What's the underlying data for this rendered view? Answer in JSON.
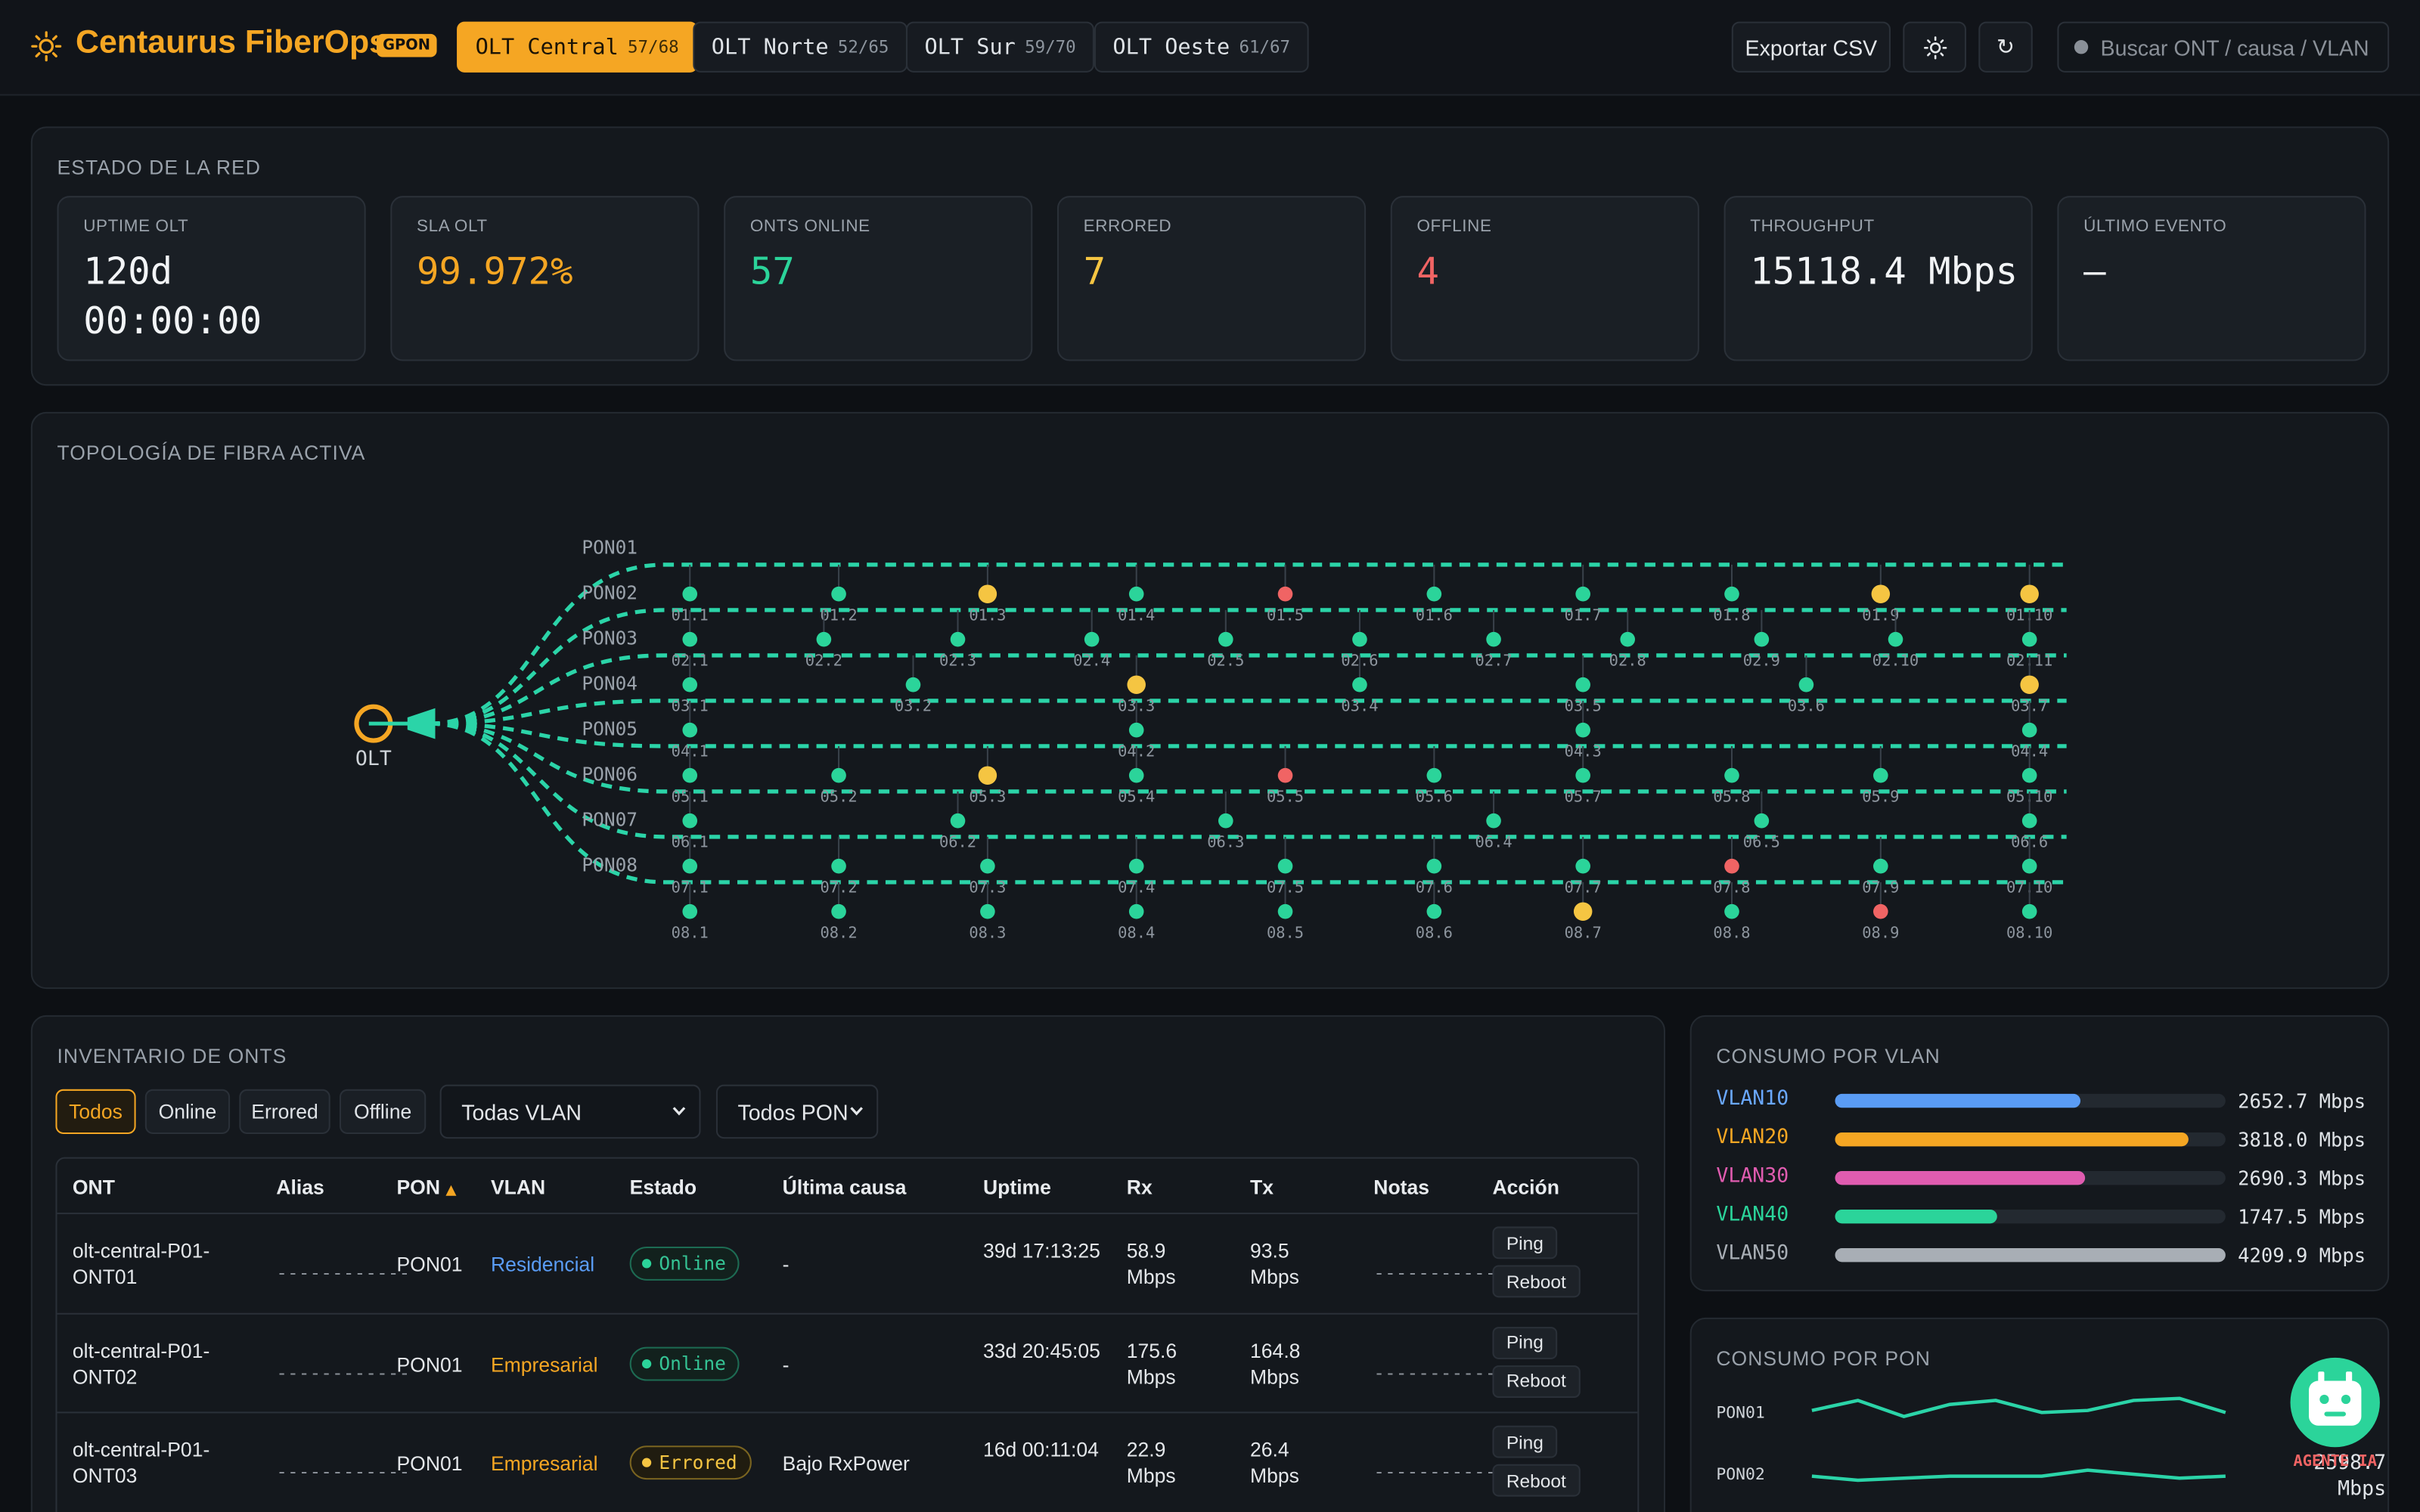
{
  "header": {
    "brand": "Centaurus FiberOps",
    "badge": "GPON",
    "olts": [
      {
        "name": "OLT Central",
        "count": "57/68",
        "active": true
      },
      {
        "name": "OLT Norte",
        "count": "52/65",
        "active": false
      },
      {
        "name": "OLT Sur",
        "count": "59/70",
        "active": false
      },
      {
        "name": "OLT Oeste",
        "count": "61/67",
        "active": false
      }
    ],
    "export_label": "Exportar CSV",
    "refresh_glyph": "↻",
    "search_placeholder": "Buscar ONT / causa / VLAN",
    "icons": {
      "brand": "sun-icon",
      "theme": "sun-icon",
      "refresh": "refresh-icon"
    }
  },
  "network": {
    "title": "ESTADO DE LA RED",
    "kpis": [
      {
        "label": "UPTIME OLT",
        "value": "120d 00:00:00",
        "color": "#f2f4f6"
      },
      {
        "label": "SLA OLT",
        "value": "99.972%",
        "color": "#f5a623"
      },
      {
        "label": "ONTS ONLINE",
        "value": "57",
        "color": "#2bd49a"
      },
      {
        "label": "ERRORED",
        "value": "7",
        "color": "#f5c542"
      },
      {
        "label": "OFFLINE",
        "value": "4",
        "color": "#f06464"
      },
      {
        "label": "THROUGHPUT",
        "value": "15118.4 Mbps",
        "color": "#f2f4f6"
      },
      {
        "label": "ÚLTIMO EVENTO",
        "value": "–",
        "color": "#f2f4f6"
      }
    ]
  },
  "topology": {
    "title": "TOPOLOGÍA DE FIBRA ACTIVA",
    "olt_label": "OLT",
    "colors": {
      "online": "#2bd49a",
      "errored": "#f5c542",
      "offline": "#f06464",
      "fiber": "#2bd4a8",
      "olt": "#f5a623"
    },
    "pons": [
      {
        "name": "PON01",
        "onts": [
          {
            "id": "01.1",
            "s": "online"
          },
          {
            "id": "01.2",
            "s": "online"
          },
          {
            "id": "01.3",
            "s": "errored"
          },
          {
            "id": "01.4",
            "s": "online"
          },
          {
            "id": "01.5",
            "s": "offline"
          },
          {
            "id": "01.6",
            "s": "online"
          },
          {
            "id": "01.7",
            "s": "online"
          },
          {
            "id": "01.8",
            "s": "online"
          },
          {
            "id": "01.9",
            "s": "errored"
          },
          {
            "id": "01.10",
            "s": "errored"
          }
        ]
      },
      {
        "name": "PON02",
        "onts": [
          {
            "id": "02.1",
            "s": "online"
          },
          {
            "id": "02.2",
            "s": "online"
          },
          {
            "id": "02.3",
            "s": "online"
          },
          {
            "id": "02.4",
            "s": "online"
          },
          {
            "id": "02.5",
            "s": "online"
          },
          {
            "id": "02.6",
            "s": "online"
          },
          {
            "id": "02.7",
            "s": "online"
          },
          {
            "id": "02.8",
            "s": "online"
          },
          {
            "id": "02.9",
            "s": "online"
          },
          {
            "id": "02.10",
            "s": "online"
          },
          {
            "id": "02.11",
            "s": "online"
          }
        ]
      },
      {
        "name": "PON03",
        "onts": [
          {
            "id": "03.1",
            "s": "online"
          },
          {
            "id": "03.2",
            "s": "online"
          },
          {
            "id": "03.3",
            "s": "errored"
          },
          {
            "id": "03.4",
            "s": "online"
          },
          {
            "id": "03.5",
            "s": "online"
          },
          {
            "id": "03.6",
            "s": "online"
          },
          {
            "id": "03.7",
            "s": "errored"
          }
        ]
      },
      {
        "name": "PON04",
        "onts": [
          {
            "id": "04.1",
            "s": "online"
          },
          {
            "id": "04.2",
            "s": "online"
          },
          {
            "id": "04.3",
            "s": "online"
          },
          {
            "id": "04.4",
            "s": "online"
          }
        ]
      },
      {
        "name": "PON05",
        "onts": [
          {
            "id": "05.1",
            "s": "online"
          },
          {
            "id": "05.2",
            "s": "online"
          },
          {
            "id": "05.3",
            "s": "errored"
          },
          {
            "id": "05.4",
            "s": "online"
          },
          {
            "id": "05.5",
            "s": "offline"
          },
          {
            "id": "05.6",
            "s": "online"
          },
          {
            "id": "05.7",
            "s": "online"
          },
          {
            "id": "05.8",
            "s": "online"
          },
          {
            "id": "05.9",
            "s": "online"
          },
          {
            "id": "05.10",
            "s": "online"
          }
        ]
      },
      {
        "name": "PON06",
        "onts": [
          {
            "id": "06.1",
            "s": "online"
          },
          {
            "id": "06.2",
            "s": "online"
          },
          {
            "id": "06.3",
            "s": "online"
          },
          {
            "id": "06.4",
            "s": "online"
          },
          {
            "id": "06.5",
            "s": "online"
          },
          {
            "id": "06.6",
            "s": "online"
          }
        ]
      },
      {
        "name": "PON07",
        "onts": [
          {
            "id": "07.1",
            "s": "online"
          },
          {
            "id": "07.2",
            "s": "online"
          },
          {
            "id": "07.3",
            "s": "online"
          },
          {
            "id": "07.4",
            "s": "online"
          },
          {
            "id": "07.5",
            "s": "online"
          },
          {
            "id": "07.6",
            "s": "online"
          },
          {
            "id": "07.7",
            "s": "online"
          },
          {
            "id": "07.8",
            "s": "offline"
          },
          {
            "id": "07.9",
            "s": "online"
          },
          {
            "id": "07.10",
            "s": "online"
          }
        ]
      },
      {
        "name": "PON08",
        "onts": [
          {
            "id": "08.1",
            "s": "online"
          },
          {
            "id": "08.2",
            "s": "online"
          },
          {
            "id": "08.3",
            "s": "online"
          },
          {
            "id": "08.4",
            "s": "online"
          },
          {
            "id": "08.5",
            "s": "online"
          },
          {
            "id": "08.6",
            "s": "online"
          },
          {
            "id": "08.7",
            "s": "errored"
          },
          {
            "id": "08.8",
            "s": "online"
          },
          {
            "id": "08.9",
            "s": "offline"
          },
          {
            "id": "08.10",
            "s": "online"
          }
        ]
      }
    ]
  },
  "inventory": {
    "title": "INVENTARIO DE ONTS",
    "filters": [
      "Todos",
      "Online",
      "Errored",
      "Offline"
    ],
    "active_filter": "Todos",
    "vlan_select": "Todas VLAN",
    "pon_select": "Todos PON",
    "columns": [
      "ONT",
      "Alias",
      "PON",
      "VLAN",
      "Estado",
      "Última causa",
      "Uptime",
      "Rx",
      "Tx",
      "Notas",
      "Acción"
    ],
    "sort_indicator": "▲",
    "placeholder_dash": "------------",
    "ping_label": "Ping",
    "reboot_label": "Reboot",
    "rows": [
      {
        "ont": "olt-central-P01-ONT01",
        "pon": "PON01",
        "vlan": "Residencial",
        "vlan_color": "#5a9cf5",
        "estado": "Online",
        "status": "online",
        "causa": "-",
        "uptime": "39d 17:13:25",
        "rx": "58.9 Mbps",
        "tx": "93.5 Mbps"
      },
      {
        "ont": "olt-central-P01-ONT02",
        "pon": "PON01",
        "vlan": "Empresarial",
        "vlan_color": "#f5a623",
        "estado": "Online",
        "status": "online",
        "causa": "-",
        "uptime": "33d 20:45:05",
        "rx": "175.6 Mbps",
        "tx": "164.8 Mbps"
      },
      {
        "ont": "olt-central-P01-ONT03",
        "pon": "PON01",
        "vlan": "Empresarial",
        "vlan_color": "#f5a623",
        "estado": "Errored",
        "status": "errored",
        "causa": "Bajo RxPower",
        "uptime": "16d 00:11:04",
        "rx": "22.9 Mbps",
        "tx": "26.4 Mbps"
      }
    ]
  },
  "vlan_usage": {
    "title": "CONSUMO POR VLAN",
    "max_mbps": 4209.9,
    "items": [
      {
        "name": "VLAN10",
        "value": 2652.7,
        "label": "2652.7 Mbps",
        "color": "#5a9cf5",
        "text_color": "#6aa8ff"
      },
      {
        "name": "VLAN20",
        "value": 3818.0,
        "label": "3818.0 Mbps",
        "color": "#f5a623",
        "text_color": "#f5a623"
      },
      {
        "name": "VLAN30",
        "value": 2690.3,
        "label": "2690.3 Mbps",
        "color": "#e05cb0",
        "text_color": "#e05cb0"
      },
      {
        "name": "VLAN40",
        "value": 1747.5,
        "label": "1747.5 Mbps",
        "color": "#2bd49a",
        "text_color": "#2bd49a"
      },
      {
        "name": "VLAN50",
        "value": 4209.9,
        "label": "4209.9 Mbps",
        "color": "#a8aeb5",
        "text_color": "#a8aeb5"
      }
    ]
  },
  "pon_usage": {
    "title": "CONSUMO POR PON",
    "line_color": "#2bd4a8",
    "value_label": "2598.7 Mbps",
    "series": [
      {
        "name": "PON01",
        "values": [
          6,
          11,
          3,
          9,
          11,
          5,
          6,
          11,
          12,
          5
        ]
      },
      {
        "name": "PON02",
        "values": [
          4,
          2,
          3,
          4,
          4,
          4,
          7,
          5,
          3,
          4
        ]
      }
    ]
  },
  "assistant": {
    "label": "AGENTE IA",
    "icon": "robot-icon"
  }
}
